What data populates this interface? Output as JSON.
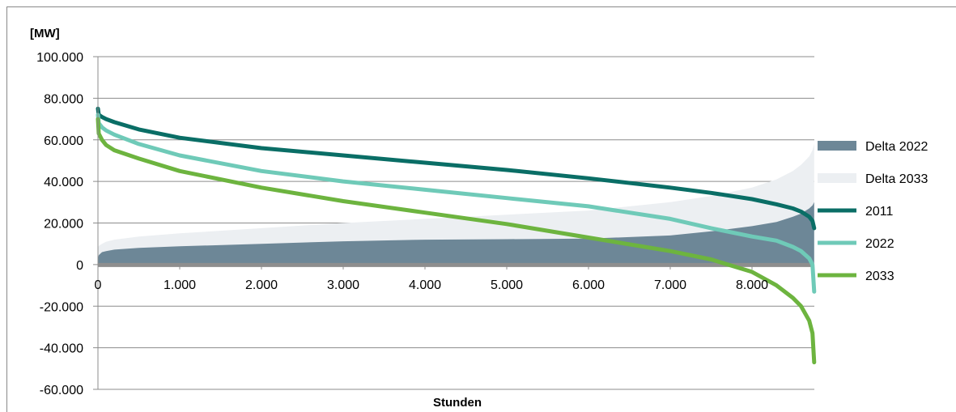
{
  "chart_data": {
    "type": "area",
    "ylabel": "[MW]",
    "xlabel": "Stunden",
    "xlim": [
      0,
      8760
    ],
    "ylim": [
      -60000,
      100000
    ],
    "x_tick_values": [
      0,
      1000,
      2000,
      3000,
      4000,
      5000,
      6000,
      7000,
      8000
    ],
    "x_tick_labels": [
      "0",
      "1.000",
      "2.000",
      "3.000",
      "4.000",
      "5.000",
      "6.000",
      "7.000",
      "8.000"
    ],
    "y_tick_values": [
      100000,
      80000,
      60000,
      40000,
      20000,
      0,
      -20000,
      -40000,
      -60000
    ],
    "y_tick_labels": [
      "100.000",
      "80.000",
      "60.000",
      "40.000",
      "20.000",
      "0",
      "-20.000",
      "-40.000",
      "-60.000"
    ],
    "grid": "horizontal",
    "legend_position": "right",
    "x": [
      0,
      10,
      50,
      100,
      200,
      500,
      1000,
      2000,
      3000,
      4000,
      5000,
      6000,
      7000,
      7500,
      8000,
      8300,
      8500,
      8600,
      8700,
      8740,
      8760
    ],
    "series": [
      {
        "name": "Delta 2022",
        "kind": "area",
        "color": "#6d8797",
        "values": [
          3000,
          4500,
          6000,
          6500,
          7200,
          8000,
          8800,
          10000,
          11200,
          12000,
          12200,
          12500,
          14000,
          16000,
          18500,
          20500,
          23000,
          24500,
          27000,
          28500,
          30000
        ]
      },
      {
        "name": "Delta 2033",
        "kind": "area",
        "color": "#eceff2",
        "values": [
          8000,
          9000,
          10000,
          11000,
          12000,
          13500,
          15000,
          17500,
          20000,
          22000,
          24000,
          26000,
          30000,
          33000,
          37000,
          41000,
          45000,
          48000,
          52000,
          55000,
          58000
        ]
      },
      {
        "name": "2011",
        "kind": "line",
        "color": "#0a6e66",
        "values": [
          75000,
          72000,
          71000,
          70000,
          68500,
          65000,
          61000,
          56000,
          52500,
          49000,
          45500,
          41500,
          37000,
          34500,
          31500,
          29000,
          27000,
          25500,
          23000,
          21000,
          17500
        ]
      },
      {
        "name": "2022",
        "kind": "line",
        "color": "#6fcab8",
        "values": [
          72000,
          68000,
          66000,
          64500,
          62500,
          58000,
          52500,
          45000,
          40000,
          36000,
          32000,
          28000,
          22000,
          17500,
          13500,
          11500,
          8500,
          6500,
          3000,
          0,
          -13000
        ]
      },
      {
        "name": "2033",
        "kind": "line",
        "color": "#6db43f",
        "values": [
          70000,
          63000,
          60000,
          57500,
          55000,
          51000,
          45000,
          37000,
          30500,
          25000,
          19500,
          13000,
          6500,
          2500,
          -3500,
          -10000,
          -16000,
          -20000,
          -27000,
          -33000,
          -47000
        ]
      }
    ]
  }
}
